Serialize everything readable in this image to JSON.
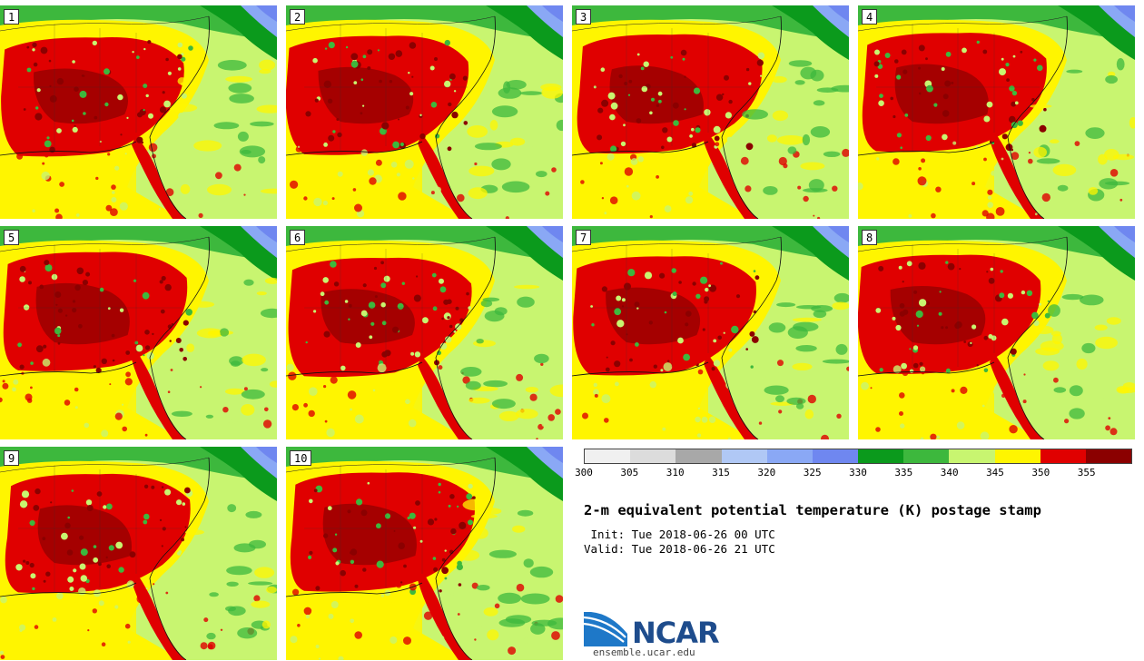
{
  "panels": [
    {
      "label": "1"
    },
    {
      "label": "2"
    },
    {
      "label": "3"
    },
    {
      "label": "4"
    },
    {
      "label": "5"
    },
    {
      "label": "6"
    },
    {
      "label": "7"
    },
    {
      "label": "8"
    },
    {
      "label": "9"
    },
    {
      "label": "10"
    }
  ],
  "colorbar": {
    "colors": [
      "#f0f0f0",
      "#dcdcdc",
      "#a8a8a8",
      "#b0c8f5",
      "#8aa8f5",
      "#6f87f0",
      "#0b9a1c",
      "#3db83d",
      "#c8f570",
      "#fff500",
      "#e00000",
      "#8b0000"
    ],
    "ticks": [
      "300",
      "305",
      "310",
      "315",
      "320",
      "325",
      "330",
      "335",
      "340",
      "345",
      "350",
      "355"
    ]
  },
  "legend": {
    "title": "2-m equivalent potential temperature (K) postage stamp",
    "init": " Init: Tue 2018-06-26 00 UTC",
    "valid": "Valid: Tue 2018-06-26 21 UTC"
  },
  "branding": {
    "logo_text": "NCAR",
    "site": "ensemble.ucar.edu"
  }
}
